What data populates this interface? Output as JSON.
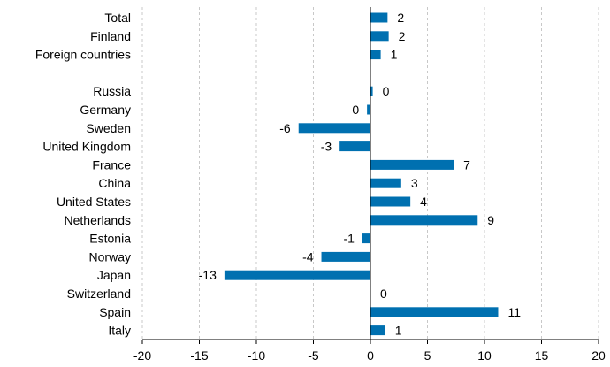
{
  "chart_data": {
    "type": "bar",
    "orientation": "horizontal",
    "categories": [
      "Total",
      "Finland",
      "Foreign countries",
      "",
      "Russia",
      "Germany",
      "Sweden",
      "United Kingdom",
      "France",
      "China",
      "United States",
      "Netherlands",
      "Estonia",
      "Norway",
      "Japan",
      "Switzerland",
      "Spain",
      "Italy"
    ],
    "values": [
      1.5,
      1.6,
      0.9,
      null,
      0.2,
      -0.3,
      -6.3,
      -2.7,
      7.3,
      2.7,
      3.5,
      9.4,
      -0.7,
      -4.3,
      -12.8,
      0.0,
      11.2,
      1.3
    ],
    "value_labels": [
      "2",
      "2",
      "1",
      "",
      "0",
      "0",
      "-6",
      "-3",
      "7",
      "3",
      "4",
      "9",
      "-1",
      "-4",
      "-13",
      "0",
      "11",
      "1"
    ],
    "xlim": [
      -20,
      20
    ],
    "xticks": [
      -20,
      -15,
      -10,
      -5,
      0,
      5,
      10,
      15,
      20
    ],
    "xtick_labels": [
      "-20",
      "-15",
      "-10",
      "-5",
      "0",
      "5",
      "10",
      "15",
      "20"
    ],
    "title": "",
    "xlabel": "",
    "ylabel": "",
    "grid": "vertical dashed",
    "legend": "none",
    "bar_color": "#0070b0"
  }
}
